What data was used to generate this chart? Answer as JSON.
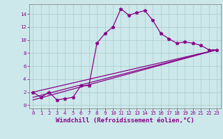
{
  "background_color": "#cce8ea",
  "grid_color": "#aacccc",
  "line_color": "#880088",
  "marker_style": "*",
  "marker_size": 3.5,
  "line_width": 0.9,
  "xlabel": "Windchill (Refroidissement éolien,°C)",
  "xlabel_fontsize": 6.5,
  "xlim": [
    -0.5,
    23.5
  ],
  "ylim": [
    -0.5,
    15.5
  ],
  "yticks": [
    0,
    2,
    4,
    6,
    8,
    10,
    12,
    14
  ],
  "xticks": [
    0,
    1,
    2,
    3,
    4,
    5,
    6,
    7,
    8,
    9,
    10,
    11,
    12,
    13,
    14,
    15,
    16,
    17,
    18,
    19,
    20,
    21,
    22,
    23
  ],
  "tick_fontsize": 5.2,
  "series": [
    {
      "x": [
        0,
        1,
        2,
        3,
        4,
        5,
        6,
        7,
        8,
        9,
        10,
        11,
        12,
        13,
        14,
        15,
        16,
        17,
        18,
        19,
        20,
        21,
        22,
        23
      ],
      "y": [
        2.0,
        1.2,
        2.0,
        0.8,
        1.0,
        1.2,
        3.0,
        3.0,
        9.5,
        11.0,
        12.0,
        14.8,
        13.8,
        14.2,
        14.5,
        13.0,
        11.0,
        10.2,
        9.5,
        9.7,
        9.5,
        9.2,
        8.5,
        8.5
      ],
      "has_markers": true
    },
    {
      "x": [
        0,
        23
      ],
      "y": [
        2.0,
        8.5
      ],
      "has_markers": false
    },
    {
      "x": [
        0,
        23
      ],
      "y": [
        0.8,
        8.5
      ],
      "has_markers": false
    },
    {
      "x": [
        0,
        23
      ],
      "y": [
        1.2,
        8.5
      ],
      "has_markers": false
    }
  ]
}
